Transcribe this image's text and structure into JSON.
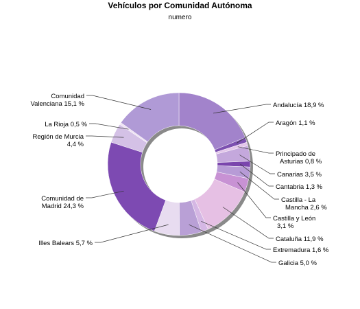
{
  "chart_data": {
    "type": "pie",
    "donut": true,
    "title": "Vehículos por Comunidad Autónoma",
    "subtitle": "numero",
    "slices": [
      {
        "name": "Andalucía",
        "label_lines": [
          "Andalucía 18,9 %"
        ],
        "value": 18.9,
        "color": "#a283cb"
      },
      {
        "name": "Aragón",
        "label_lines": [
          "Aragón 1,1 %"
        ],
        "value": 1.1,
        "color": "#7c50b0"
      },
      {
        "name": "Principado de Asturias",
        "label_lines": [
          "Principado de",
          "Asturias 0,8 %"
        ],
        "value": 0.8,
        "color": "#e3c6ea"
      },
      {
        "name": "Canarias",
        "label_lines": [
          "Canarias 3,5 %"
        ],
        "value": 3.5,
        "color": "#c4a8dc"
      },
      {
        "name": "Cantabria",
        "label_lines": [
          "Cantabria 1,3 %"
        ],
        "value": 1.3,
        "color": "#7a45ad"
      },
      {
        "name": "Castilla - La Mancha",
        "label_lines": [
          "Castilla - La",
          "Mancha 2,6 %"
        ],
        "value": 2.6,
        "color": "#b79bd6"
      },
      {
        "name": "Castilla y León",
        "label_lines": [
          "Castilla y León",
          "3,1 %"
        ],
        "value": 3.1,
        "color": "#c892d4"
      },
      {
        "name": "Cataluña",
        "label_lines": [
          "Cataluña 11,9 %"
        ],
        "value": 11.9,
        "color": "#e6c0e4"
      },
      {
        "name": "Extremadura",
        "label_lines": [
          "Extremadura 1,6 %"
        ],
        "value": 1.6,
        "color": "#d5b7e4"
      },
      {
        "name": "Galicia",
        "label_lines": [
          "Galicia 5,0 %"
        ],
        "value": 5.0,
        "color": "#b9a0d6"
      },
      {
        "name": "Illes Balears",
        "label_lines": [
          "Illes Balears 5,7 %"
        ],
        "value": 5.7,
        "color": "#e8dcf0"
      },
      {
        "name": "Comunidad de Madrid",
        "label_lines": [
          "Comunidad de",
          "Madrid 24,3 %"
        ],
        "value": 24.3,
        "color": "#7d4ab2"
      },
      {
        "name": "Región de Murcia",
        "label_lines": [
          "Región de Murcia",
          "4,4 %"
        ],
        "value": 4.4,
        "color": "#d4c1e6"
      },
      {
        "name": "La Rioja",
        "label_lines": [
          "La Rioja 0,5 %"
        ],
        "value": 0.5,
        "color": "#efe3f4"
      },
      {
        "name": "Comunidad Valenciana",
        "label_lines": [
          "Comunidad",
          "Valenciana 15,1 %"
        ],
        "value": 15.1,
        "color": "#b09ad6"
      }
    ]
  }
}
